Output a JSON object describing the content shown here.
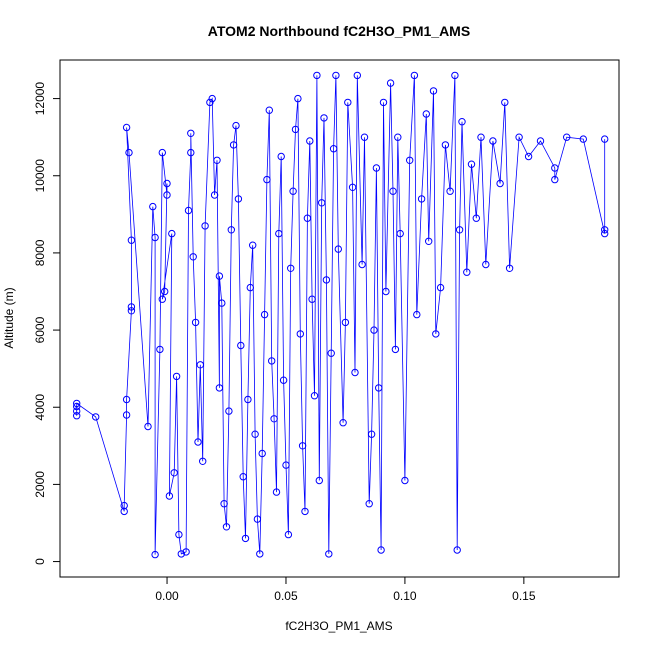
{
  "chart_data": {
    "type": "scatter",
    "title": "ATOM2 Northbound fC2H3O_PM1_AMS",
    "xlabel": "fC2H3O_PM1_AMS",
    "ylabel": "Altitude (m)",
    "xlim": [
      -0.045,
      0.19
    ],
    "ylim": [
      -400,
      13000
    ],
    "x_ticks": [
      0.0,
      0.05,
      0.1,
      0.15
    ],
    "x_tick_labels": [
      "0.00",
      "0.05",
      "0.10",
      "0.15"
    ],
    "y_ticks": [
      0,
      2000,
      4000,
      6000,
      8000,
      10000,
      12000
    ],
    "y_tick_labels": [
      "0",
      "2000",
      "4000",
      "6000",
      "8000",
      "10000",
      "12000"
    ],
    "series_color": "#0000ff",
    "marker": "open-circle",
    "connected": true,
    "grid": false,
    "series": [
      {
        "points": [
          [
            -0.038,
            3780
          ],
          [
            -0.038,
            3900
          ],
          [
            -0.038,
            4020
          ],
          [
            -0.038,
            4100
          ],
          [
            -0.03,
            3750
          ],
          [
            -0.018,
            1300
          ],
          [
            -0.018,
            1450
          ],
          [
            -0.017,
            3800
          ],
          [
            -0.017,
            4200
          ],
          [
            -0.015,
            6500
          ],
          [
            -0.015,
            6600
          ],
          [
            -0.015,
            8330
          ],
          [
            -0.017,
            11250
          ],
          [
            -0.016,
            10600
          ],
          [
            -0.008,
            3500
          ],
          [
            -0.006,
            9200
          ],
          [
            -0.005,
            8400
          ],
          [
            -0.005,
            180
          ],
          [
            -0.003,
            5500
          ],
          [
            -0.002,
            10600
          ],
          [
            0.0,
            9500
          ],
          [
            0.0,
            9800
          ],
          [
            -0.001,
            7000
          ],
          [
            -0.002,
            6800
          ],
          [
            0.002,
            8500
          ],
          [
            0.001,
            1700
          ],
          [
            0.003,
            2300
          ],
          [
            0.004,
            4800
          ],
          [
            0.005,
            700
          ],
          [
            0.006,
            200
          ],
          [
            0.008,
            250
          ],
          [
            0.009,
            9100
          ],
          [
            0.01,
            10600
          ],
          [
            0.01,
            11100
          ],
          [
            0.011,
            7900
          ],
          [
            0.012,
            6200
          ],
          [
            0.013,
            3100
          ],
          [
            0.014,
            5100
          ],
          [
            0.015,
            2600
          ],
          [
            0.016,
            8700
          ],
          [
            0.018,
            11900
          ],
          [
            0.019,
            12000
          ],
          [
            0.02,
            9500
          ],
          [
            0.021,
            10400
          ],
          [
            0.022,
            4500
          ],
          [
            0.022,
            7400
          ],
          [
            0.023,
            6700
          ],
          [
            0.024,
            1500
          ],
          [
            0.025,
            900
          ],
          [
            0.026,
            3900
          ],
          [
            0.027,
            8600
          ],
          [
            0.028,
            10800
          ],
          [
            0.029,
            11300
          ],
          [
            0.03,
            9400
          ],
          [
            0.031,
            5600
          ],
          [
            0.032,
            2200
          ],
          [
            0.033,
            600
          ],
          [
            0.034,
            4200
          ],
          [
            0.035,
            7100
          ],
          [
            0.036,
            8200
          ],
          [
            0.037,
            3300
          ],
          [
            0.038,
            1100
          ],
          [
            0.039,
            200
          ],
          [
            0.04,
            2800
          ],
          [
            0.041,
            6400
          ],
          [
            0.042,
            9900
          ],
          [
            0.043,
            11700
          ],
          [
            0.044,
            5200
          ],
          [
            0.045,
            3700
          ],
          [
            0.046,
            1800
          ],
          [
            0.047,
            8500
          ],
          [
            0.048,
            10500
          ],
          [
            0.049,
            4700
          ],
          [
            0.05,
            2500
          ],
          [
            0.051,
            700
          ],
          [
            0.052,
            7600
          ],
          [
            0.053,
            9600
          ],
          [
            0.054,
            11200
          ],
          [
            0.055,
            12000
          ],
          [
            0.056,
            5900
          ],
          [
            0.057,
            3000
          ],
          [
            0.058,
            1300
          ],
          [
            0.059,
            8900
          ],
          [
            0.06,
            10900
          ],
          [
            0.061,
            6800
          ],
          [
            0.062,
            4300
          ],
          [
            0.063,
            12600
          ],
          [
            0.064,
            2100
          ],
          [
            0.065,
            9300
          ],
          [
            0.066,
            11500
          ],
          [
            0.067,
            7300
          ],
          [
            0.068,
            200
          ],
          [
            0.069,
            5400
          ],
          [
            0.07,
            10700
          ],
          [
            0.071,
            12600
          ],
          [
            0.072,
            8100
          ],
          [
            0.074,
            3600
          ],
          [
            0.075,
            6200
          ],
          [
            0.076,
            11900
          ],
          [
            0.078,
            9700
          ],
          [
            0.079,
            4900
          ],
          [
            0.08,
            12600
          ],
          [
            0.082,
            7700
          ],
          [
            0.083,
            11000
          ],
          [
            0.085,
            1500
          ],
          [
            0.086,
            3300
          ],
          [
            0.087,
            6000
          ],
          [
            0.088,
            10200
          ],
          [
            0.089,
            4500
          ],
          [
            0.09,
            300
          ],
          [
            0.091,
            11900
          ],
          [
            0.092,
            7000
          ],
          [
            0.094,
            12400
          ],
          [
            0.095,
            9600
          ],
          [
            0.096,
            5500
          ],
          [
            0.097,
            11000
          ],
          [
            0.098,
            8500
          ],
          [
            0.1,
            2100
          ],
          [
            0.102,
            10400
          ],
          [
            0.104,
            12600
          ],
          [
            0.105,
            6400
          ],
          [
            0.107,
            9400
          ],
          [
            0.109,
            11600
          ],
          [
            0.11,
            8300
          ],
          [
            0.112,
            12200
          ],
          [
            0.113,
            5900
          ],
          [
            0.115,
            7100
          ],
          [
            0.117,
            10800
          ],
          [
            0.119,
            9600
          ],
          [
            0.121,
            12600
          ],
          [
            0.122,
            300
          ],
          [
            0.123,
            8600
          ],
          [
            0.124,
            11400
          ],
          [
            0.126,
            7500
          ],
          [
            0.128,
            10300
          ],
          [
            0.13,
            8900
          ],
          [
            0.132,
            11000
          ],
          [
            0.134,
            7700
          ],
          [
            0.137,
            10900
          ],
          [
            0.14,
            9800
          ],
          [
            0.142,
            11900
          ],
          [
            0.144,
            7600
          ],
          [
            0.148,
            11000
          ],
          [
            0.152,
            10500
          ],
          [
            0.157,
            10900
          ],
          [
            0.163,
            10200
          ],
          [
            0.163,
            9900
          ],
          [
            0.168,
            11000
          ],
          [
            0.175,
            10950
          ],
          [
            0.184,
            8500
          ],
          [
            0.184,
            8600
          ],
          [
            0.184,
            10950
          ]
        ]
      }
    ]
  }
}
